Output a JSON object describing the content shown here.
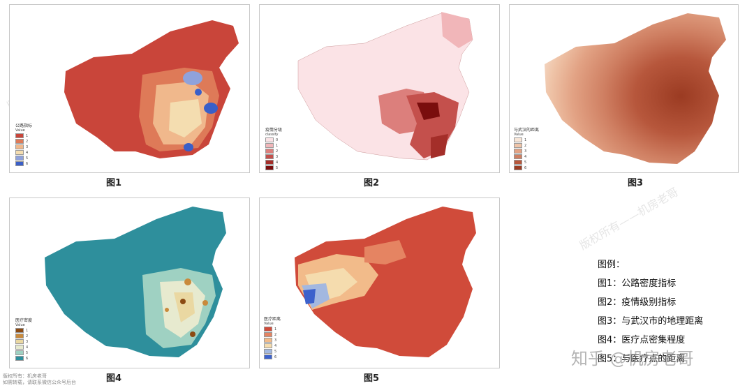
{
  "panels": [
    {
      "caption": "图1",
      "legend_title": "公路指标",
      "legend_sub": "Value",
      "legend_colors": [
        "#c9453a",
        "#de7a58",
        "#f0b88c",
        "#f4ddb0",
        "#8fa2db",
        "#3a5fc8"
      ],
      "legend_labels": [
        "1",
        "2",
        "3",
        "4",
        "5",
        "6"
      ]
    },
    {
      "caption": "图2",
      "legend_title": "疫情分级",
      "legend_sub": "classify",
      "legend_colors": [
        "#fbe3e6",
        "#f1b6b9",
        "#dc7f7c",
        "#c4504c",
        "#a42e29",
        "#7a0d0d"
      ],
      "legend_labels": [
        "0",
        "1",
        "2",
        "3",
        "4",
        "5"
      ]
    },
    {
      "caption": "图3",
      "legend_title": "与武汉的距离",
      "legend_sub": "Value",
      "legend_colors": [
        "#f8e6d8",
        "#efc4a8",
        "#e2a284",
        "#cf7f62",
        "#b7573c",
        "#9b3b22"
      ],
      "legend_labels": [
        "1",
        "2",
        "3",
        "4",
        "5",
        "6"
      ]
    },
    {
      "caption": "图4",
      "legend_title": "医疗密度",
      "legend_sub": "Value",
      "legend_colors": [
        "#8b4a13",
        "#c98a3c",
        "#ead8a2",
        "#e7eacf",
        "#9fd1c2",
        "#2e8f9c"
      ],
      "legend_labels": [
        "1",
        "2",
        "3",
        "4",
        "5",
        "6"
      ]
    },
    {
      "caption": "图5",
      "legend_title": "医疗距离",
      "legend_sub": "Value",
      "legend_colors": [
        "#d04b3a",
        "#e58462",
        "#f2bb8a",
        "#f5dcae",
        "#a3b8e0",
        "#3c61cc"
      ],
      "legend_labels": [
        "1",
        "2",
        "3",
        "4",
        "5",
        "6"
      ]
    }
  ],
  "key": {
    "title": "图例：",
    "items": [
      "图1：公路密度指标",
      "图2：疫情级别指标",
      "图3：与武汉市的地理距离",
      "图4：医疗点密集程度",
      "图5：与医疗点的距离"
    ]
  },
  "watermark": {
    "zhihu": "知乎 @机房老哥",
    "copyright_line1": "版权所有：机房老哥",
    "copyright_line2": "如需转载，请联系微信公众号后台",
    "diagonal": "版权所有——机房老哥"
  }
}
